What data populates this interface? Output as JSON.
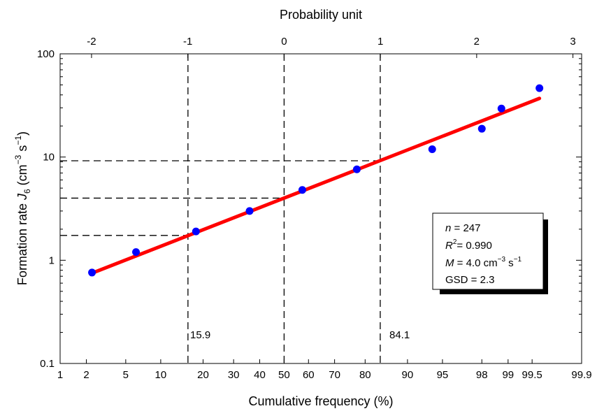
{
  "chart_data": {
    "type": "scatter",
    "xlabel": "Cumulative frequency (%)",
    "x2label": "Probability unit",
    "ylabel": "Formation rate J6 (cm−3 s−1)",
    "ylabel_parts": {
      "base": "Formation rate ",
      "var": "J",
      "sub": "6",
      "unit_open": " (cm",
      "exp1": "−3",
      "unit_mid": " s",
      "exp2": "−1",
      "unit_close": ")"
    },
    "x_scale": "probability",
    "y_scale": "log",
    "xlim": [
      1,
      99.9
    ],
    "ylim": [
      0.1,
      100
    ],
    "x_ticks": [
      1,
      2,
      5,
      10,
      20,
      30,
      40,
      50,
      60,
      70,
      80,
      90,
      95,
      98,
      99,
      99.5,
      99.9
    ],
    "x_tick_labels": [
      "1",
      "2",
      "5",
      "10",
      "20",
      "30",
      "40",
      "50",
      "60",
      "70",
      "80",
      "90",
      "95",
      "98",
      "99",
      "99.5",
      "99.9"
    ],
    "x2_ticks": [
      -2,
      -1,
      0,
      1,
      2,
      3
    ],
    "x2_tick_labels": [
      "-2",
      "-1",
      "0",
      "1",
      "2",
      "3"
    ],
    "y_ticks": [
      0.1,
      1,
      10,
      100
    ],
    "y_tick_labels": [
      "0.1",
      "1",
      "10",
      "100"
    ],
    "points": [
      {
        "x": 2.3,
        "y": 0.76
      },
      {
        "x": 6.2,
        "y": 1.2
      },
      {
        "x": 18.0,
        "y": 1.9
      },
      {
        "x": 36.0,
        "y": 3.0
      },
      {
        "x": 57.5,
        "y": 4.8
      },
      {
        "x": 77.5,
        "y": 7.6
      },
      {
        "x": 93.8,
        "y": 11.9
      },
      {
        "x": 98.0,
        "y": 18.8
      },
      {
        "x": 98.8,
        "y": 29.5
      },
      {
        "x": 99.6,
        "y": 46.5
      }
    ],
    "point_color": "#0000ff",
    "fit_line": {
      "x": [
        2.3,
        99.6
      ],
      "y": [
        0.75,
        37.0
      ],
      "color": "#ff0000"
    },
    "reference_lines": {
      "vertical_x": [
        15.9,
        50,
        84.1
      ],
      "horizontal_y": [
        1.74,
        4.0,
        9.2
      ],
      "labels": [
        "15.9",
        "84.1"
      ]
    },
    "stats_box": {
      "n_label": "n",
      "n_value": " = 247",
      "r2_label": "R",
      "r2_exp": "2",
      "r2_value": "= 0.990",
      "m_label": "M",
      "m_value": " = 4.0 cm",
      "m_exp1": "−3",
      "m_unit": " s",
      "m_exp2": "−1",
      "gsd": "GSD = 2.3"
    },
    "grid": false,
    "legend": "none"
  }
}
